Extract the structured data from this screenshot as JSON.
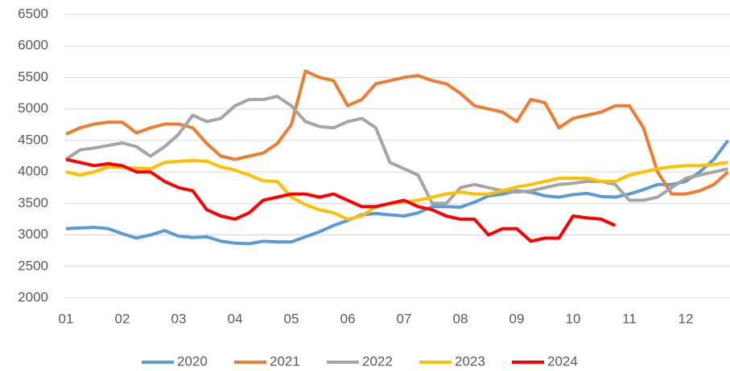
{
  "chart_data": {
    "type": "line",
    "categories": [
      "01",
      null,
      null,
      null,
      "02",
      null,
      null,
      null,
      "03",
      null,
      null,
      null,
      "04",
      null,
      null,
      null,
      "05",
      null,
      null,
      null,
      "06",
      null,
      null,
      null,
      "07",
      null,
      null,
      null,
      "08",
      null,
      null,
      null,
      "09",
      null,
      null,
      null,
      "10",
      null,
      null,
      null,
      "11",
      null,
      null,
      null,
      "12",
      null,
      null,
      null
    ],
    "series": [
      {
        "name": "2020",
        "color": "#5b9bd5",
        "values": [
          3100,
          3110,
          3120,
          3100,
          3020,
          2950,
          3000,
          3070,
          2980,
          2960,
          2970,
          2900,
          2870,
          2860,
          2900,
          2890,
          2890,
          2970,
          3050,
          3150,
          3230,
          3320,
          3340,
          3320,
          3300,
          3350,
          3450,
          3450,
          3440,
          3520,
          3620,
          3650,
          3700,
          3680,
          3620,
          3600,
          3640,
          3660,
          3610,
          3600,
          3650,
          3720,
          3800,
          3800,
          3850,
          4000,
          4200,
          4500
        ]
      },
      {
        "name": "2021",
        "color": "#ed7d31",
        "values": [
          4600,
          4700,
          4760,
          4790,
          4790,
          4620,
          4700,
          4760,
          4760,
          4700,
          4450,
          4250,
          4200,
          4250,
          4300,
          4450,
          4750,
          5600,
          5500,
          5450,
          5050,
          5150,
          5400,
          5450,
          5500,
          5530,
          5450,
          5400,
          5250,
          5050,
          5000,
          4950,
          4800,
          5150,
          5100,
          4700,
          4850,
          4900,
          4950,
          5050,
          5050,
          4700,
          4000,
          3650,
          3650,
          3700,
          3800,
          4000
        ]
      },
      {
        "name": "2022",
        "color": "#a5a5a5",
        "values": [
          4200,
          4350,
          4380,
          4420,
          4460,
          4400,
          4250,
          4400,
          4600,
          4900,
          4800,
          4850,
          5050,
          5150,
          5150,
          5200,
          5050,
          4800,
          4720,
          4700,
          4800,
          4850,
          4700,
          4150,
          4050,
          3950,
          3500,
          3500,
          3750,
          3800,
          3750,
          3700,
          3680,
          3700,
          3750,
          3800,
          3820,
          3850,
          3850,
          3800,
          3550,
          3550,
          3600,
          3750,
          3900,
          3950,
          4000,
          4050
        ]
      },
      {
        "name": "2023",
        "color": "#ffc000",
        "values": [
          4000,
          3950,
          4000,
          4080,
          4070,
          4060,
          4050,
          4150,
          4170,
          4180,
          4170,
          4080,
          4030,
          3950,
          3860,
          3850,
          3600,
          3480,
          3400,
          3350,
          3250,
          3300,
          3450,
          3500,
          3520,
          3550,
          3600,
          3650,
          3680,
          3650,
          3650,
          3700,
          3760,
          3800,
          3850,
          3900,
          3900,
          3900,
          3850,
          3850,
          3950,
          4000,
          4050,
          4080,
          4100,
          4100,
          4120,
          4150
        ]
      },
      {
        "name": "2024",
        "color": "#ff0000",
        "values": [
          4200,
          4150,
          4100,
          4130,
          4100,
          4000,
          4000,
          3850,
          3750,
          3700,
          3400,
          3300,
          3250,
          3350,
          3550,
          3600,
          3650,
          3650,
          3600,
          3650,
          3550,
          3450,
          3450,
          3500,
          3550,
          3450,
          3400,
          3300,
          3250,
          3250,
          3000,
          3100,
          3100,
          2900,
          2950,
          2950,
          3300,
          3270,
          3250,
          3150,
          null,
          null,
          null,
          null,
          null,
          null,
          null,
          null
        ]
      }
    ],
    "ylim": [
      2000,
      6500
    ],
    "yticks": [
      2000,
      2500,
      3000,
      3500,
      4000,
      4500,
      5000,
      5500,
      6000,
      6500
    ],
    "grid": true,
    "legend": "bottom"
  }
}
